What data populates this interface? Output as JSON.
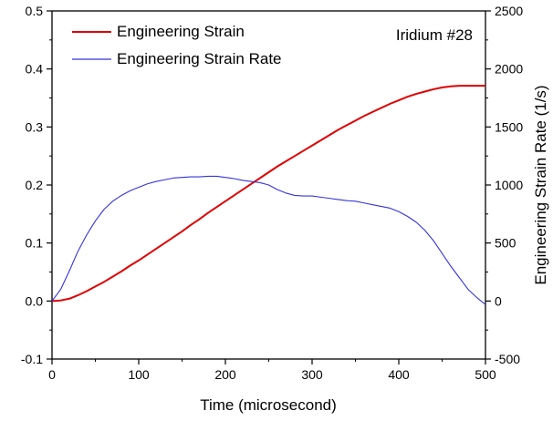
{
  "chart_data": {
    "type": "line",
    "annotation": "Iridium #28",
    "xlabel": "Time (microsecond)",
    "ylabel_left": "",
    "ylabel_right": "Engineering Strain Rate (1/s)",
    "xlim": [
      0,
      500
    ],
    "ylim_left": [
      -0.1,
      0.5
    ],
    "ylim_right": [
      -500,
      2500
    ],
    "x_ticks": [
      "0",
      "100",
      "200",
      "300",
      "400",
      "500"
    ],
    "y_left_ticks": [
      "-0.1",
      "0.0",
      "0.1",
      "0.2",
      "0.3",
      "0.4",
      "0.5"
    ],
    "y_right_ticks": [
      "-500",
      "0",
      "500",
      "1000",
      "1500",
      "2000",
      "2500"
    ],
    "grid": false,
    "legend_position": "top-left",
    "series": [
      {
        "name": "Engineering Strain",
        "axis": "left",
        "color": "#e00000",
        "x": [
          0,
          10,
          20,
          30,
          40,
          50,
          60,
          70,
          80,
          90,
          100,
          110,
          120,
          130,
          140,
          150,
          160,
          170,
          180,
          190,
          200,
          210,
          220,
          230,
          240,
          250,
          260,
          270,
          280,
          290,
          300,
          310,
          320,
          330,
          340,
          350,
          360,
          370,
          380,
          390,
          400,
          410,
          420,
          430,
          440,
          450,
          460,
          470,
          480,
          490,
          500
        ],
        "y": [
          0.0,
          0.001,
          0.004,
          0.01,
          0.017,
          0.025,
          0.033,
          0.042,
          0.051,
          0.061,
          0.07,
          0.08,
          0.09,
          0.1,
          0.11,
          0.12,
          0.131,
          0.141,
          0.152,
          0.162,
          0.172,
          0.182,
          0.192,
          0.202,
          0.212,
          0.222,
          0.232,
          0.241,
          0.25,
          0.259,
          0.268,
          0.277,
          0.286,
          0.295,
          0.303,
          0.311,
          0.319,
          0.326,
          0.333,
          0.34,
          0.346,
          0.352,
          0.357,
          0.361,
          0.365,
          0.368,
          0.37,
          0.371,
          0.371,
          0.371,
          0.371
        ]
      },
      {
        "name": "Engineering Strain Rate",
        "axis": "right",
        "color": "#3333dd",
        "x": [
          0,
          10,
          20,
          30,
          40,
          50,
          60,
          70,
          80,
          90,
          100,
          110,
          120,
          130,
          140,
          150,
          160,
          170,
          180,
          190,
          200,
          210,
          220,
          230,
          240,
          250,
          260,
          270,
          280,
          290,
          300,
          310,
          320,
          330,
          340,
          350,
          360,
          370,
          380,
          390,
          400,
          410,
          420,
          430,
          440,
          450,
          460,
          470,
          480,
          490,
          500
        ],
        "y": [
          0,
          100,
          260,
          430,
          570,
          690,
          790,
          860,
          910,
          950,
          980,
          1010,
          1030,
          1045,
          1060,
          1065,
          1070,
          1070,
          1075,
          1075,
          1065,
          1055,
          1040,
          1030,
          1020,
          1000,
          960,
          930,
          910,
          905,
          905,
          895,
          885,
          875,
          865,
          860,
          845,
          830,
          815,
          800,
          770,
          730,
          680,
          610,
          520,
          410,
          300,
          200,
          100,
          30,
          -30
        ]
      }
    ]
  }
}
